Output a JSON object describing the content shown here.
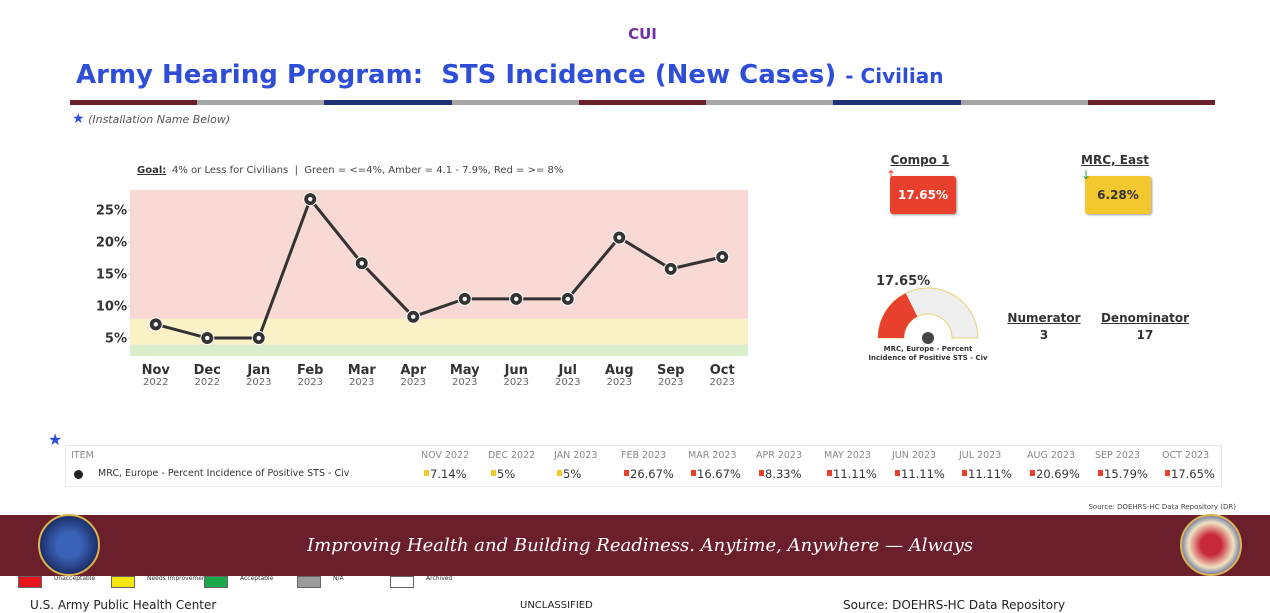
{
  "header": {
    "classification": "CUI",
    "title": "Army Hearing Program:  STS Incidence (New Cases)",
    "subtitle": "- Civilian",
    "note": "(Installation Name Below)"
  },
  "chart_data": {
    "type": "line",
    "goal_label": "Goal:",
    "goal_text": "4% or Less for Civilians  |  Green = <=4%, Amber = 4.1 - 7.9%, Red = >= 8%",
    "categories": [
      "Nov",
      "Dec",
      "Jan",
      "Feb",
      "Mar",
      "Apr",
      "May",
      "Jun",
      "Jul",
      "Aug",
      "Sep",
      "Oct"
    ],
    "category_years": [
      "2022",
      "2022",
      "2023",
      "2023",
      "2023",
      "2023",
      "2023",
      "2023",
      "2023",
      "2023",
      "2023",
      "2023"
    ],
    "values": [
      7.14,
      5,
      5,
      26.67,
      16.67,
      8.33,
      11.11,
      11.11,
      11.11,
      20.69,
      15.79,
      17.65
    ],
    "color": "#333333",
    "ylim": [
      2.2,
      28.1
    ],
    "yticks": [
      {
        "value": 5,
        "label": "5%"
      },
      {
        "value": 10,
        "label": "10%"
      },
      {
        "value": 15,
        "label": "15%"
      },
      {
        "value": 20,
        "label": "20%"
      },
      {
        "value": 25,
        "label": "25%"
      }
    ],
    "bands": [
      {
        "range": [
          2.2,
          4
        ],
        "color": "#d9efcc"
      },
      {
        "range": [
          4,
          8
        ],
        "color": "#fbf1c7"
      },
      {
        "range": [
          8,
          28.1
        ],
        "color": "#f8d9d4"
      }
    ]
  },
  "kpis": [
    {
      "label": "Compo 1",
      "value": "17.65%",
      "color": "#e8402c"
    },
    {
      "label": "MRC, East",
      "value": "6.28%",
      "color": "#f3c72e"
    }
  ],
  "gauge": {
    "value": 17.65,
    "value_label": "17.65%",
    "range": [
      0,
      50
    ],
    "color": "#e8402c",
    "caption": "MRC, Europe - Percent Incidence of Positive STS - Civ"
  },
  "ratio": {
    "numerator_label": "Numerator",
    "numerator": 3,
    "denominator_label": "Denominator",
    "denominator": 17
  },
  "table": {
    "columns": [
      "ITEM",
      "NOV 2022",
      "DEC 2022",
      "JAN 2023",
      "FEB 2023",
      "MAR 2023",
      "APR 2023",
      "MAY 2023",
      "JUN 2023",
      "JUL 2023",
      "AUG 2023",
      "SEP 2023",
      "OCT 2023"
    ],
    "rows": [
      {
        "item": "MRC, Europe - Percent Incidence of Positive STS - Civ",
        "cells": [
          "7.14%",
          "5%",
          "5%",
          "26.67%",
          "16.67%",
          "8.33%",
          "11.11%",
          "11.11%",
          "11.11%",
          "20.69%",
          "15.79%",
          "17.65%"
        ],
        "flags": [
          "#f3c72e",
          "#f3c72e",
          "#f3c72e",
          "#e8402c",
          "#e8402c",
          "#e8402c",
          "#e8402c",
          "#e8402c",
          "#e8402c",
          "#e8402c",
          "#e8402c",
          "#e8402c"
        ]
      }
    ]
  },
  "source_top": "Source: DOEHRS-HC Data Repository (DR)",
  "banner": "Improving Health and Building Readiness. Anytime, Anywhere — Always",
  "legend": [
    {
      "label": "Unacceptable",
      "color": "#e8141c"
    },
    {
      "label": "Needs Improvement",
      "color": "#f5e60d"
    },
    {
      "label": "Acceptable",
      "color": "#19a84a"
    },
    {
      "label": "N/A",
      "color": "#9b9b9b"
    },
    {
      "label": "Archived",
      "color": "#ffffff"
    }
  ],
  "footer": {
    "left": "U.S. Army Public Health Center",
    "center": "UNCLASSIFIED",
    "right": "Source:  DOEHRS-HC Data Repository"
  }
}
